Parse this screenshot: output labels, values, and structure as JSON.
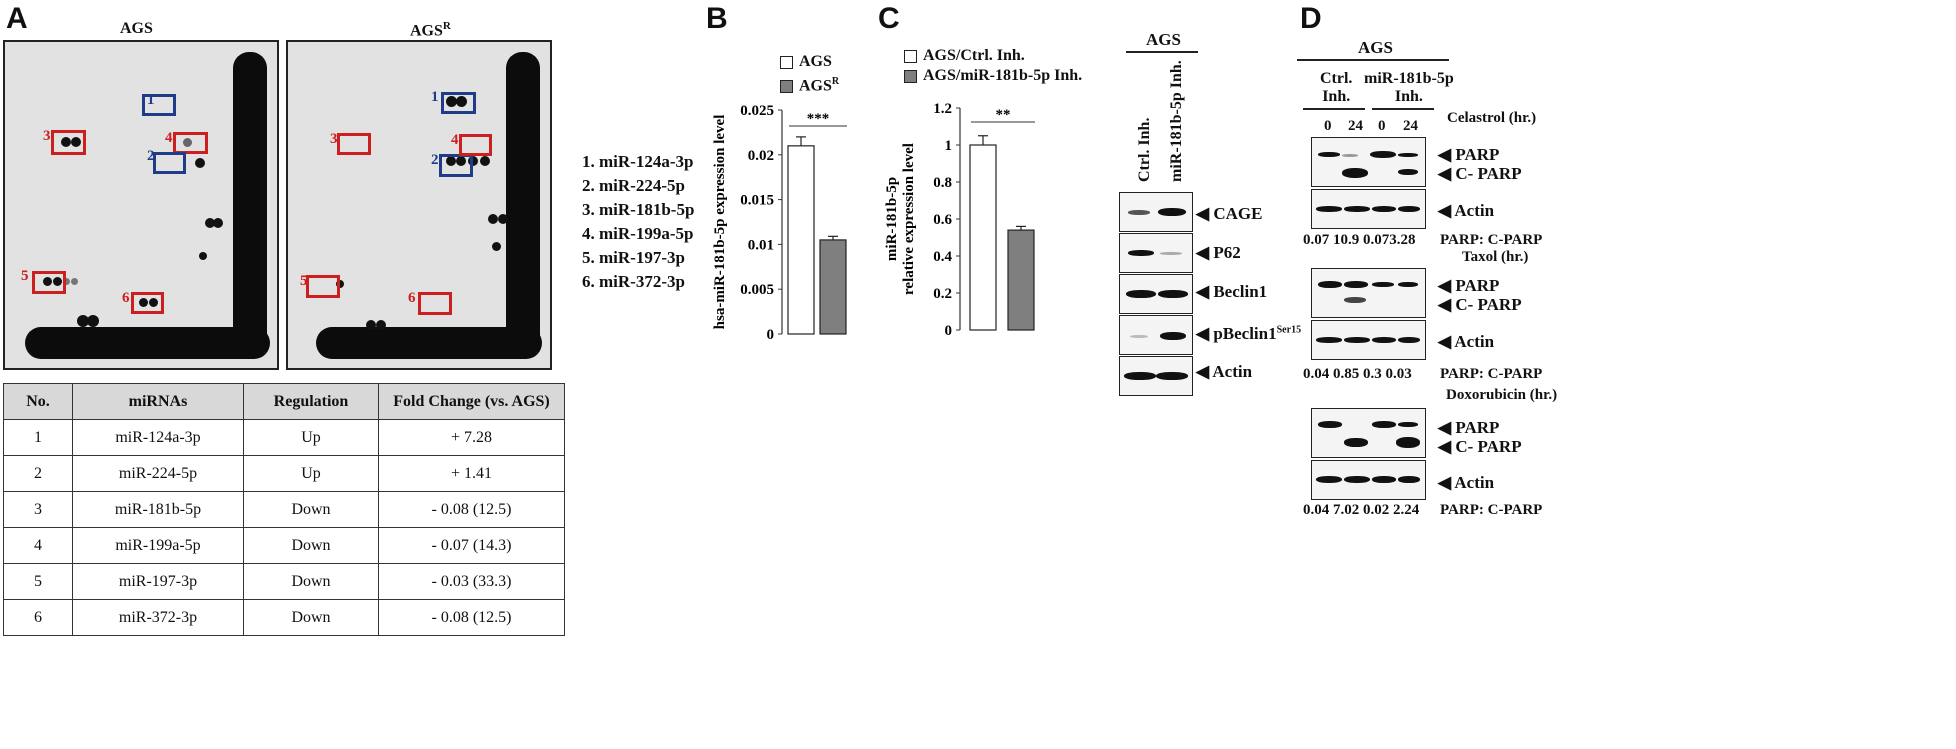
{
  "panelA": {
    "letter": "A",
    "array_titles": [
      "AGS",
      "AGS",
      "R"
    ],
    "marker_numbers": [
      "1",
      "2",
      "3",
      "4",
      "5",
      "6"
    ],
    "mirna_list": [
      "1. miR-124a-3p",
      "2. miR-224-5p",
      "3. miR-181b-5p",
      "4. miR-199a-5p",
      "5. miR-197-3p",
      "6. miR-372-3p"
    ],
    "table": {
      "headers": [
        "No.",
        "miRNAs",
        "Regulation",
        "Fold Change (vs. AGS)"
      ],
      "rows": [
        [
          "1",
          "miR-124a-3p",
          "Up",
          "+ 7.28"
        ],
        [
          "2",
          "miR-224-5p",
          "Up",
          "+ 1.41"
        ],
        [
          "3",
          "miR-181b-5p",
          "Down",
          "- 0.08 (12.5)"
        ],
        [
          "4",
          "miR-199a-5p",
          "Down",
          "- 0.07 (14.3)"
        ],
        [
          "5",
          "miR-197-3p",
          "Down",
          "- 0.03 (33.3)"
        ],
        [
          "6",
          "miR-372-3p",
          "Down",
          "- 0.08 (12.5)"
        ]
      ]
    }
  },
  "panelB": {
    "letter": "B",
    "legend": [
      "AGS",
      "AGS",
      "R"
    ],
    "significance": "***"
  },
  "panelC": {
    "letter": "C",
    "legend": [
      "AGS/Ctrl. Inh.",
      "AGS/miR-181b-5p Inh."
    ],
    "significance": "**",
    "blot_title": "AGS",
    "lanes": [
      "Ctrl. Inh.",
      "miR-181b-5p Inh."
    ],
    "proteins": [
      "CAGE",
      "P62",
      "Beclin1",
      "pBeclin1",
      "Ser15",
      "Actin"
    ]
  },
  "panelD": {
    "letter": "D",
    "title": "AGS",
    "groups": [
      "Ctrl.",
      "Inh.",
      "miR-181b-5p",
      "Inh."
    ],
    "times": [
      "0",
      "24",
      "0",
      "24"
    ],
    "treatments": [
      "Celastrol (hr.)",
      "Taxol (hr.)",
      "Doxorubicin (hr.)"
    ],
    "labels": [
      "PARP",
      "C- PARP",
      "Actin"
    ],
    "ratio_label": "PARP: C-PARP",
    "ratios": [
      [
        "0.07",
        "10.9",
        "0.07",
        "3.28"
      ],
      [
        "0.04",
        "0.85",
        "0.3",
        "0.03"
      ],
      [
        "0.04",
        "7.02",
        "0.02",
        "2.24"
      ]
    ]
  },
  "chart_data": [
    {
      "type": "bar",
      "categories": [
        "AGS",
        "AGSR"
      ],
      "values": [
        0.021,
        0.0105
      ],
      "errors": [
        0.001,
        0.0004
      ],
      "title": "",
      "xlabel": "",
      "ylabel": "hsa-miR-181b-5p expression level",
      "ylim": [
        0,
        0.025
      ],
      "yticks": [
        "0",
        "0.005",
        "0.01",
        "0.015",
        "0.02",
        "0.025"
      ],
      "colors": [
        "#ffffff",
        "#7f7f7f"
      ]
    },
    {
      "type": "bar",
      "categories": [
        "AGS/Ctrl. Inh.",
        "AGS/miR-181b-5p Inh."
      ],
      "values": [
        1.0,
        0.54
      ],
      "errors": [
        0.05,
        0.02
      ],
      "title": "",
      "xlabel": "",
      "ylabel": [
        "miR-181b-5p",
        "relative expression level"
      ],
      "ylim": [
        0,
        1.2
      ],
      "yticks": [
        "0",
        "0.2",
        "0.4",
        "0.6",
        "0.8",
        "1",
        "1.2"
      ],
      "colors": [
        "#ffffff",
        "#7f7f7f"
      ]
    }
  ]
}
